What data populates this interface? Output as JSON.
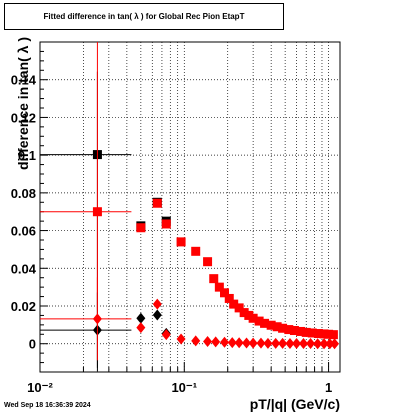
{
  "title": "Fitted difference in tan( λ ) for Global Rec Pion EtapT",
  "footer": "Wed Sep 18 16:36:39 2024",
  "chart_data": {
    "type": "scatter",
    "xlabel": "pT/|q| (GeV/c)",
    "ylabel": "difference in tan( λ )",
    "xscale": "log",
    "xlim": [
      0.01,
      1.2
    ],
    "ylim": [
      -0.015,
      0.16
    ],
    "grid": true,
    "ytick_values": [
      0,
      0.02,
      0.04,
      0.06,
      0.08,
      0.1,
      0.12,
      0.14
    ],
    "ytick_labels": [
      "0",
      "0.02",
      "0.04",
      "0.06",
      "0.08",
      "0.1",
      "0.12",
      "0.14"
    ],
    "xtick_values": [
      0.01,
      0.1,
      1
    ],
    "xtick_labels": [
      "10⁻²",
      "10⁻¹",
      "1"
    ],
    "series": [
      {
        "marker": "square",
        "color": "#000000",
        "points": [
          {
            "x": 0.025,
            "y": 0.1003,
            "xerr": [
              0.01,
              0.043
            ],
            "yerr": [
              0.115,
              0.044
            ]
          },
          {
            "x": 0.05,
            "y": 0.0625
          },
          {
            "x": 0.065,
            "y": 0.075
          },
          {
            "x": 0.075,
            "y": 0.065
          }
        ]
      },
      {
        "marker": "square",
        "color": "#ff0000",
        "points": [
          {
            "x": 0.025,
            "y": 0.07,
            "xerr": [
              0.01,
              0.043
            ],
            "yerr": [
              0.052,
              0.09
            ]
          },
          {
            "x": 0.05,
            "y": 0.0615
          },
          {
            "x": 0.065,
            "y": 0.0745
          },
          {
            "x": 0.075,
            "y": 0.0635
          },
          {
            "x": 0.095,
            "y": 0.054
          },
          {
            "x": 0.12,
            "y": 0.049
          },
          {
            "x": 0.145,
            "y": 0.0435
          },
          {
            "x": 0.16,
            "y": 0.0345
          },
          {
            "x": 0.175,
            "y": 0.03
          },
          {
            "x": 0.19,
            "y": 0.027
          },
          {
            "x": 0.205,
            "y": 0.024
          },
          {
            "x": 0.22,
            "y": 0.021
          },
          {
            "x": 0.24,
            "y": 0.019
          },
          {
            "x": 0.26,
            "y": 0.0165
          },
          {
            "x": 0.28,
            "y": 0.015
          },
          {
            "x": 0.3,
            "y": 0.0135
          },
          {
            "x": 0.33,
            "y": 0.012
          },
          {
            "x": 0.36,
            "y": 0.0108
          },
          {
            "x": 0.4,
            "y": 0.0098
          },
          {
            "x": 0.44,
            "y": 0.009
          },
          {
            "x": 0.48,
            "y": 0.0082
          },
          {
            "x": 0.53,
            "y": 0.0075
          },
          {
            "x": 0.58,
            "y": 0.007
          },
          {
            "x": 0.64,
            "y": 0.0065
          },
          {
            "x": 0.7,
            "y": 0.006
          },
          {
            "x": 0.77,
            "y": 0.0057
          },
          {
            "x": 0.85,
            "y": 0.0054
          },
          {
            "x": 0.93,
            "y": 0.0052
          },
          {
            "x": 1.0,
            "y": 0.005
          },
          {
            "x": 1.08,
            "y": 0.0048
          }
        ]
      },
      {
        "marker": "diamond",
        "color": "#000000",
        "points": [
          {
            "x": 0.025,
            "y": 0.0072,
            "xerr": [
              0.01,
              0.043
            ],
            "yerr": [
              0.02,
              0.02
            ]
          },
          {
            "x": 0.05,
            "y": 0.0135
          },
          {
            "x": 0.065,
            "y": 0.0152
          },
          {
            "x": 0.075,
            "y": 0.0055
          }
        ]
      },
      {
        "marker": "diamond",
        "color": "#ff0000",
        "points": [
          {
            "x": 0.025,
            "y": 0.0132,
            "xerr": [
              0.01,
              0.043
            ],
            "yerr": [
              0.022,
              0.022
            ]
          },
          {
            "x": 0.05,
            "y": 0.0085
          },
          {
            "x": 0.065,
            "y": 0.021
          },
          {
            "x": 0.075,
            "y": 0.0048
          },
          {
            "x": 0.095,
            "y": 0.0025
          },
          {
            "x": 0.12,
            "y": 0.0015
          },
          {
            "x": 0.145,
            "y": 0.0012
          },
          {
            "x": 0.165,
            "y": 0.001
          },
          {
            "x": 0.19,
            "y": 0.0008
          },
          {
            "x": 0.215,
            "y": 0.0006
          },
          {
            "x": 0.24,
            "y": 0.0005
          },
          {
            "x": 0.27,
            "y": 0.0004
          },
          {
            "x": 0.3,
            "y": 0.0003
          },
          {
            "x": 0.34,
            "y": 0.0003
          },
          {
            "x": 0.38,
            "y": 0.0002
          },
          {
            "x": 0.43,
            "y": 0.0002
          },
          {
            "x": 0.48,
            "y": 0.0002
          },
          {
            "x": 0.54,
            "y": 0.0001
          },
          {
            "x": 0.6,
            "y": 0.0001
          },
          {
            "x": 0.67,
            "y": 0.0001
          },
          {
            "x": 0.75,
            "y": 0.0001
          },
          {
            "x": 0.84,
            "y": 0.0
          },
          {
            "x": 0.93,
            "y": 0.0
          },
          {
            "x": 1.02,
            "y": 0.0
          },
          {
            "x": 1.1,
            "y": 0.0
          }
        ]
      }
    ]
  }
}
